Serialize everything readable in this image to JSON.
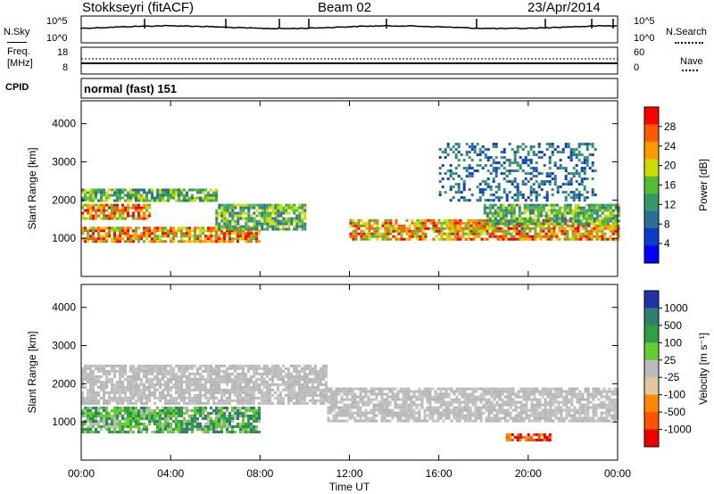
{
  "header": {
    "title": "Stokkseyri (fitACF)",
    "beam": "Beam 02",
    "date": "23/Apr/2014"
  },
  "status_panels": {
    "nsky": {
      "label": "N.Sky",
      "ticks": [
        "10^5",
        "10^0"
      ]
    },
    "nsearch": {
      "label": "N.Search",
      "ticks": [
        "10^5",
        "10^0"
      ]
    },
    "freq": {
      "label_line1": "Freq.",
      "label_line2": "[MHz]",
      "ticks": [
        "18",
        "8"
      ]
    },
    "nave": {
      "label": "Nave",
      "ticks": [
        "60",
        "0"
      ]
    },
    "cpid": {
      "label": "CPID",
      "mode": "normal (fast) 151"
    }
  },
  "chart_data": [
    {
      "type": "heatmap",
      "quantity": "Power",
      "ylabel": "Slant Range [km]",
      "ylim": [
        0,
        4600
      ],
      "yticks": [
        1000,
        2000,
        3000,
        4000
      ],
      "xlim": [
        0,
        24
      ],
      "xticks": [
        "00:00",
        "04:00",
        "08:00",
        "12:00",
        "16:00",
        "20:00",
        "00:00"
      ],
      "colorbar": {
        "label": "Power [dB]",
        "ticks": [
          "28",
          "24",
          "20",
          "16",
          "12",
          "8",
          "4"
        ],
        "colors": [
          "#ff0000",
          "#ff5a00",
          "#ff9900",
          "#ccdd00",
          "#55bb33",
          "#339966",
          "#2b6f99",
          "#0a3cc8",
          "#0000ff"
        ]
      },
      "bands": [
        {
          "t": [
            0,
            8
          ],
          "range": [
            900,
            1300
          ],
          "level": "high"
        },
        {
          "t": [
            0,
            3
          ],
          "range": [
            1500,
            1900
          ],
          "level": "high"
        },
        {
          "t": [
            0,
            6
          ],
          "range": [
            2000,
            2300
          ],
          "level": "mid"
        },
        {
          "t": [
            6,
            10
          ],
          "range": [
            1200,
            1900
          ],
          "level": "mid"
        },
        {
          "t": [
            12,
            24
          ],
          "range": [
            1000,
            1500
          ],
          "level": "high"
        },
        {
          "t": [
            18,
            24
          ],
          "range": [
            1400,
            1900
          ],
          "level": "mid"
        },
        {
          "t": [
            16,
            23
          ],
          "range": [
            2000,
            3500
          ],
          "level": "low"
        }
      ]
    },
    {
      "type": "heatmap",
      "quantity": "Velocity",
      "ylabel": "Slant Range [km]",
      "ylim": [
        0,
        4600
      ],
      "yticks": [
        1000,
        2000,
        3000,
        4000
      ],
      "xlim": [
        0,
        24
      ],
      "xlabel": "Time UT",
      "xticks": [
        "00:00",
        "04:00",
        "08:00",
        "12:00",
        "16:00",
        "20:00",
        "00:00"
      ],
      "colorbar": {
        "label": "Velocity [m s⁻¹]",
        "ticks": [
          "1000",
          "500",
          "100",
          "25",
          "-25",
          "-100",
          "-500",
          "-1000"
        ],
        "colors": [
          "#2233aa",
          "#2f7f6f",
          "#2f9f3f",
          "#66cc33",
          "#bbbbbb",
          "#e0c8a0",
          "#ff8800",
          "#ff5500",
          "#ee0000"
        ]
      },
      "bands": [
        {
          "t": [
            0,
            8
          ],
          "range": [
            700,
            1400
          ],
          "level": "positive"
        },
        {
          "t": [
            0,
            11
          ],
          "range": [
            1500,
            2500
          ],
          "level": "ground"
        },
        {
          "t": [
            11,
            24
          ],
          "range": [
            1000,
            1900
          ],
          "level": "ground"
        },
        {
          "t": [
            19,
            21
          ],
          "range": [
            500,
            700
          ],
          "level": "negative"
        }
      ]
    }
  ]
}
